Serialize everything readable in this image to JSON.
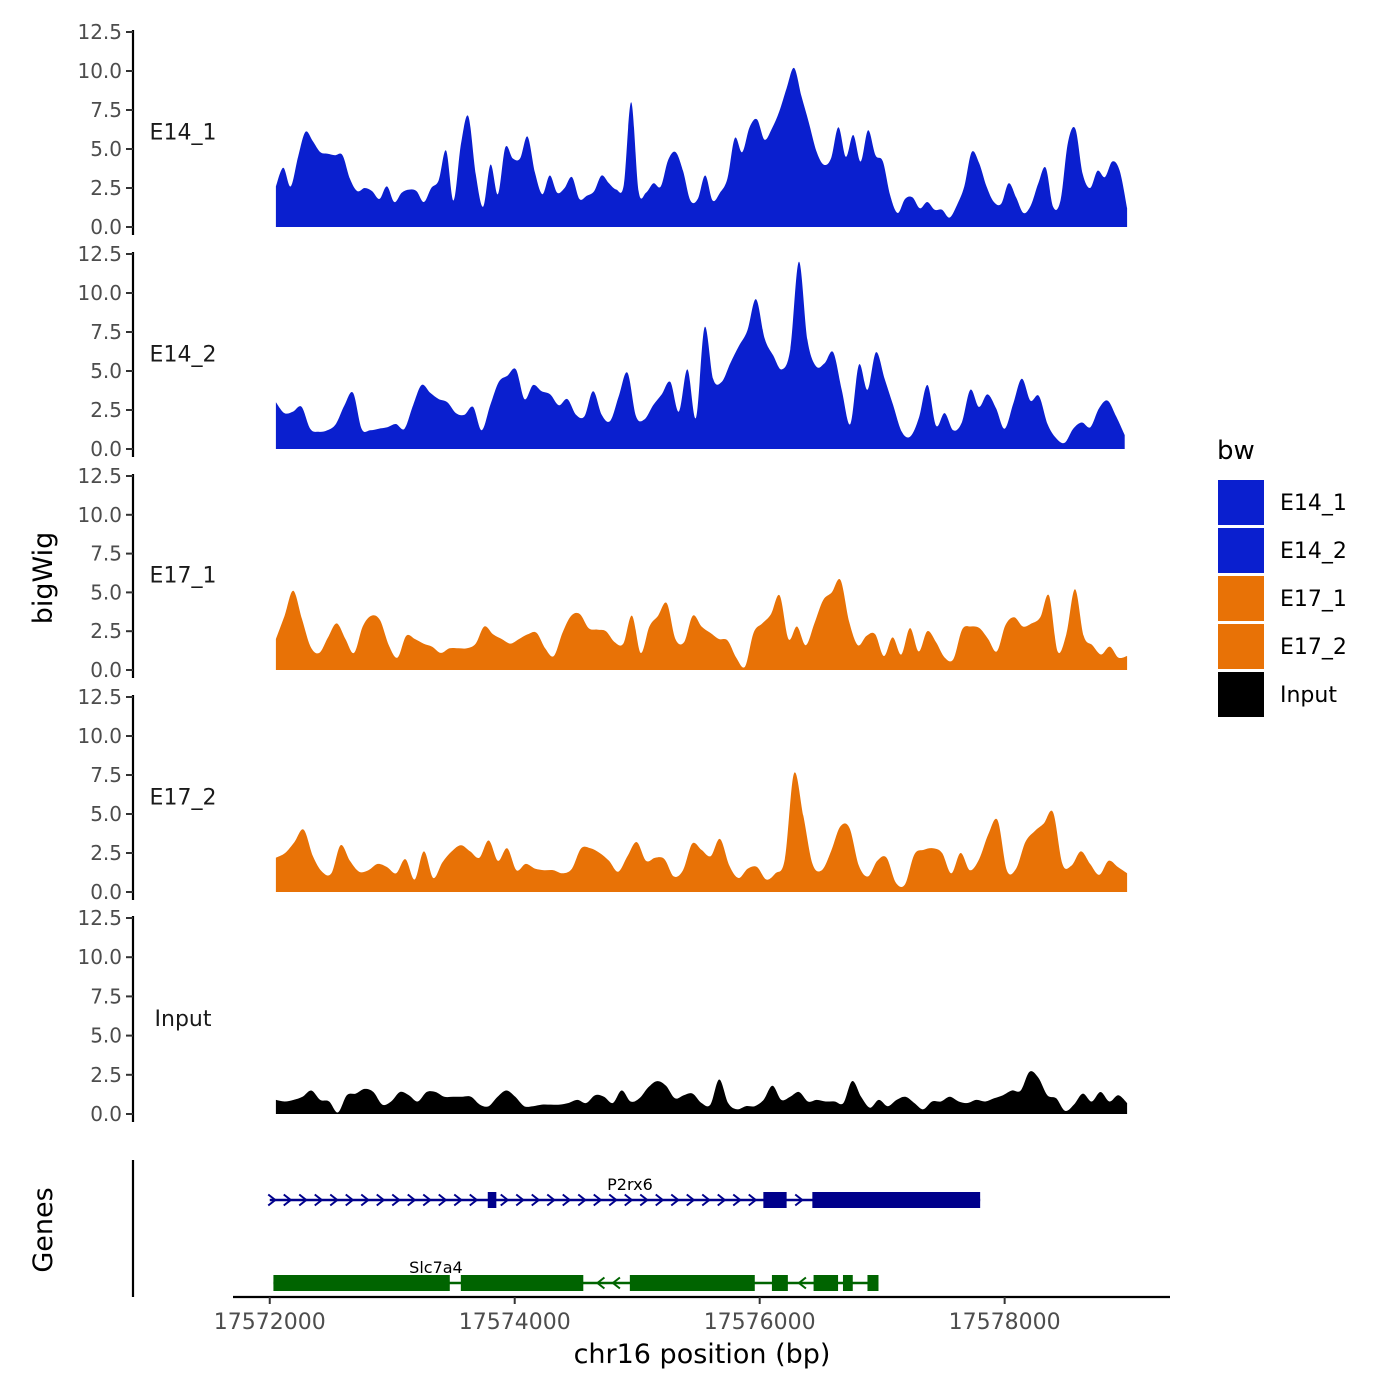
{
  "chart_data": {
    "type": "area",
    "tracks": [
      {
        "name": "E14_1",
        "color": "#0A1FCF",
        "start": 17572050,
        "end": 17579000,
        "values": [
          2.6,
          3.8,
          2.6,
          4.5,
          6.1,
          5.5,
          4.8,
          4.7,
          4.6,
          4.6,
          3.1,
          2.3,
          2.5,
          2.3,
          1.8,
          2.6,
          1.6,
          2.2,
          2.4,
          2.3,
          1.6,
          2.5,
          3.0,
          4.9,
          1.7,
          5.3,
          7.1,
          3.4,
          1.3,
          4.0,
          2.1,
          5.1,
          4.4,
          4.4,
          5.8,
          3.5,
          2.1,
          3.3,
          2.2,
          2.5,
          3.2,
          1.8,
          2.0,
          2.3,
          3.3,
          2.8,
          2.4,
          2.7,
          8.0,
          2.3,
          2.2,
          2.8,
          2.6,
          4.3,
          4.8,
          3.6,
          1.7,
          1.8,
          3.3,
          1.7,
          2.2,
          3.1,
          5.7,
          4.8,
          6.4,
          6.9,
          5.6,
          6.3,
          7.4,
          8.9,
          10.2,
          8.4,
          6.7,
          4.9,
          4.0,
          4.4,
          6.4,
          4.5,
          5.9,
          4.2,
          6.2,
          4.6,
          4.2,
          2.0,
          0.9,
          1.8,
          1.9,
          1.2,
          1.6,
          1.1,
          1.1,
          0.6,
          1.4,
          2.6,
          4.8,
          4.1,
          2.6,
          1.6,
          1.5,
          2.8,
          1.9,
          0.9,
          1.4,
          2.8,
          3.8,
          1.3,
          1.7,
          5.4,
          6.3,
          3.4,
          2.5,
          3.6,
          3.2,
          4.2,
          3.6,
          1.2
        ]
      },
      {
        "name": "E14_2",
        "color": "#0A1FCF",
        "start": 17572050,
        "end": 17578980,
        "values": [
          3.0,
          2.3,
          2.4,
          2.7,
          1.3,
          1.1,
          1.2,
          1.6,
          2.8,
          3.6,
          1.3,
          1.2,
          1.3,
          1.4,
          1.6,
          1.3,
          2.8,
          4.1,
          3.6,
          3.2,
          3.0,
          2.3,
          2.2,
          2.7,
          1.2,
          2.8,
          4.3,
          4.7,
          5.1,
          3.2,
          4.1,
          3.7,
          3.5,
          2.8,
          3.2,
          2.2,
          2.1,
          3.7,
          2.2,
          1.8,
          3.4,
          4.9,
          2.1,
          1.9,
          2.8,
          3.5,
          4.3,
          2.4,
          5.1,
          2.0,
          7.8,
          4.5,
          4.3,
          5.5,
          6.6,
          7.6,
          9.6,
          7.1,
          6.0,
          5.1,
          6.4,
          12.0,
          7.0,
          5.3,
          5.5,
          6.2,
          3.8,
          1.6,
          5.4,
          3.8,
          6.2,
          4.5,
          2.8,
          1.1,
          0.8,
          2.0,
          4.1,
          1.5,
          2.3,
          1.2,
          1.7,
          3.8,
          2.7,
          3.5,
          2.6,
          1.3,
          2.9,
          4.5,
          3.1,
          3.4,
          1.6,
          0.7,
          0.4,
          1.3,
          1.7,
          1.4,
          2.6,
          3.1,
          2.1,
          0.9
        ]
      },
      {
        "name": "E17_1",
        "color": "#E87206",
        "start": 17572050,
        "end": 17579000,
        "values": [
          2.0,
          3.5,
          5.1,
          3.3,
          1.5,
          1.1,
          2.1,
          3.0,
          2.0,
          1.1,
          2.8,
          3.5,
          3.2,
          1.6,
          0.8,
          2.2,
          2.0,
          1.7,
          1.5,
          1.1,
          1.4,
          1.4,
          1.4,
          1.7,
          2.8,
          2.3,
          2.0,
          1.7,
          2.0,
          2.3,
          2.4,
          1.4,
          0.9,
          2.4,
          3.5,
          3.6,
          2.7,
          2.6,
          2.5,
          1.8,
          1.7,
          3.5,
          1.1,
          2.8,
          3.5,
          4.3,
          2.0,
          1.8,
          3.5,
          2.8,
          2.4,
          2.0,
          1.9,
          0.8,
          0.2,
          2.4,
          3.0,
          3.6,
          4.8,
          2.0,
          2.8,
          1.6,
          3.0,
          4.5,
          5.0,
          5.8,
          3.1,
          1.6,
          2.2,
          2.3,
          0.9,
          2.1,
          1.0,
          2.7,
          1.2,
          2.5,
          1.8,
          0.8,
          0.7,
          2.6,
          2.8,
          2.7,
          2.0,
          1.2,
          2.9,
          3.4,
          2.8,
          3.0,
          3.4,
          4.8,
          1.2,
          2.3,
          5.2,
          2.2,
          1.6,
          1.0,
          1.5,
          0.8,
          0.9
        ]
      },
      {
        "name": "E17_2",
        "color": "#E87206",
        "start": 17572050,
        "end": 17579000,
        "values": [
          2.2,
          2.5,
          3.2,
          4.0,
          2.3,
          1.3,
          1.2,
          3.0,
          2.0,
          1.3,
          1.4,
          1.8,
          1.6,
          1.2,
          2.1,
          0.8,
          2.6,
          0.9,
          1.9,
          2.6,
          3.0,
          2.6,
          2.2,
          3.3,
          2.0,
          2.8,
          1.4,
          1.8,
          1.5,
          1.4,
          1.4,
          1.2,
          1.5,
          2.8,
          2.8,
          2.5,
          2.0,
          1.3,
          2.3,
          3.2,
          2.0,
          2.2,
          2.1,
          1.0,
          1.4,
          3.1,
          2.7,
          2.3,
          3.4,
          1.7,
          0.9,
          1.5,
          1.6,
          0.8,
          1.2,
          2.1,
          7.6,
          4.9,
          1.8,
          1.4,
          2.6,
          4.2,
          4.1,
          1.7,
          1.0,
          2.0,
          2.2,
          0.6,
          0.5,
          2.4,
          2.7,
          2.8,
          2.5,
          1.2,
          2.5,
          1.4,
          2.1,
          3.7,
          4.6,
          1.4,
          1.5,
          3.2,
          3.9,
          4.4,
          5.1,
          1.8,
          1.7,
          2.6,
          1.8,
          1.1,
          2.0,
          1.6,
          1.2
        ]
      },
      {
        "name": "Input",
        "color": "#000000",
        "start": 17572050,
        "end": 17579000,
        "values": [
          0.9,
          0.8,
          0.9,
          1.1,
          1.5,
          0.9,
          0.8,
          0.1,
          1.2,
          1.3,
          1.6,
          1.4,
          0.6,
          0.8,
          1.4,
          1.2,
          0.8,
          1.4,
          1.4,
          1.1,
          1.1,
          1.1,
          1.1,
          0.6,
          0.5,
          1.1,
          1.5,
          1.1,
          0.5,
          0.5,
          0.6,
          0.6,
          0.6,
          0.7,
          0.9,
          0.7,
          1.2,
          1.1,
          0.7,
          1.5,
          0.8,
          1.0,
          1.7,
          2.1,
          1.8,
          1.0,
          1.2,
          1.3,
          0.7,
          0.6,
          2.2,
          0.7,
          0.3,
          0.5,
          0.5,
          0.9,
          1.8,
          0.9,
          1.1,
          1.4,
          0.8,
          0.9,
          0.8,
          0.8,
          0.7,
          2.1,
          1.1,
          0.4,
          0.9,
          0.5,
          0.9,
          1.1,
          0.7,
          0.3,
          0.8,
          0.8,
          1.1,
          0.8,
          0.7,
          0.9,
          0.8,
          1.0,
          1.2,
          1.5,
          1.5,
          2.7,
          2.3,
          1.2,
          1.0,
          0.2,
          0.6,
          1.3,
          0.8,
          1.4,
          0.8,
          1.2,
          0.7
        ]
      }
    ],
    "y_ticks": [
      "0.0",
      "2.5",
      "5.0",
      "7.5",
      "10.0",
      "12.5"
    ],
    "ylim": [
      0,
      12.5
    ],
    "ylabel": "bigWig",
    "genes_label": "Genes",
    "genes": [
      {
        "name": "P2rx6",
        "color": "#00008B",
        "strand": "+",
        "start": 17572000,
        "end": 17577800,
        "exons": [
          [
            17573780,
            17573850
          ],
          [
            17576030,
            17576220
          ],
          [
            17576430,
            17577800
          ]
        ]
      },
      {
        "name": "Slc7a4",
        "color": "#006400",
        "strand": "-",
        "start": 17572030,
        "end": 17576970,
        "exons": [
          [
            17572030,
            17573470
          ],
          [
            17573560,
            17574560
          ],
          [
            17574940,
            17575960
          ],
          [
            17576100,
            17576230
          ],
          [
            17576440,
            17576640
          ],
          [
            17576680,
            17576760
          ],
          [
            17576880,
            17576970
          ]
        ]
      }
    ],
    "xlim": [
      17571700,
      17579350
    ],
    "x_ticks": [
      17572000,
      17574000,
      17576000,
      17578000
    ],
    "x_tick_labels": [
      "17572000",
      "17574000",
      "17576000",
      "17578000"
    ],
    "xlabel": "chr16 position (bp)",
    "legend": {
      "title": "bw",
      "entries": [
        {
          "label": "E14_1",
          "color": "#0A1FCF"
        },
        {
          "label": "E14_2",
          "color": "#0A1FCF"
        },
        {
          "label": "E17_1",
          "color": "#E87206"
        },
        {
          "label": "E17_2",
          "color": "#E87206"
        },
        {
          "label": "Input",
          "color": "#000000"
        }
      ]
    }
  }
}
